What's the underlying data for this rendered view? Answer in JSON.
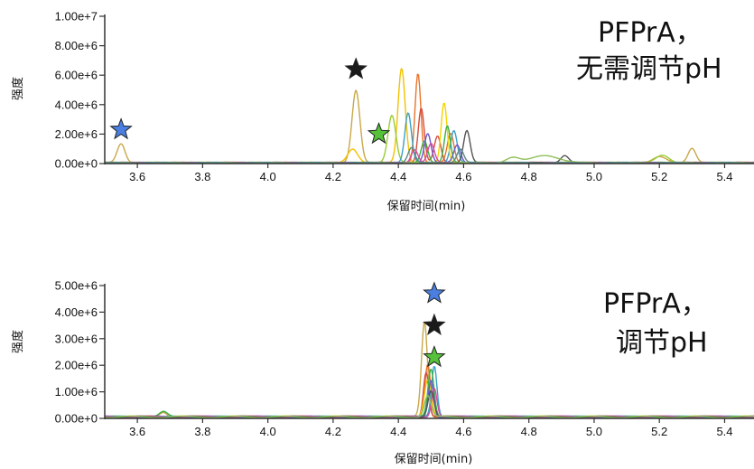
{
  "chart_data": [
    {
      "type": "line",
      "ylabel": "强度",
      "xlabel": "保留时间(min)",
      "annotation_lines": [
        "PFPrA，",
        "无需调节pH"
      ],
      "x_ticks": [
        "3.6",
        "3.8",
        "4.0",
        "4.2",
        "4.4",
        "4.6",
        "4.8",
        "5.0",
        "5.2",
        "5.4"
      ],
      "y_ticks": [
        "0.00e+0",
        "2.00e+6",
        "4.00e+6",
        "6.00e+6",
        "8.00e+6",
        "1.00e+7"
      ],
      "xlim": [
        3.5,
        5.49
      ],
      "ylim": [
        0,
        10000000
      ],
      "grid": false,
      "markers": [
        {
          "symbol": "star",
          "color": "#4a7ee0",
          "x": 3.55,
          "y": 2300000
        },
        {
          "symbol": "star",
          "color": "#1a1a1a",
          "x": 4.27,
          "y": 6400000
        },
        {
          "symbol": "star",
          "color": "#55c23a",
          "x": 4.34,
          "y": 2000000
        }
      ],
      "series": [
        {
          "color": "#c8a84a",
          "peaks": [
            [
              3.55,
              1300000,
              0.012
            ],
            [
              4.27,
              4900000,
              0.012
            ],
            [
              5.2,
              400000,
              0.02
            ],
            [
              5.3,
              1000000,
              0.012
            ]
          ]
        },
        {
          "color": "#f2c200",
          "peaks": [
            [
              4.41,
              6400000,
              0.011
            ],
            [
              4.26,
              900000,
              0.015
            ]
          ]
        },
        {
          "color": "#9acd32",
          "peaks": [
            [
              4.38,
              3200000,
              0.012
            ],
            [
              5.21,
              500000,
              0.02
            ]
          ]
        },
        {
          "color": "#e8742a",
          "peaks": [
            [
              4.46,
              6100000,
              0.009
            ],
            [
              4.56,
              2000000,
              0.01
            ]
          ]
        },
        {
          "color": "#d64c3a",
          "peaks": [
            [
              4.47,
              3700000,
              0.009
            ],
            [
              4.52,
              1800000,
              0.01
            ]
          ]
        },
        {
          "color": "#3aa0c8",
          "peaks": [
            [
              4.43,
              3400000,
              0.01
            ],
            [
              4.57,
              2200000,
              0.01
            ]
          ]
        },
        {
          "color": "#f5d400",
          "peaks": [
            [
              4.54,
              4100000,
              0.009
            ]
          ]
        },
        {
          "color": "#3cb043",
          "peaks": [
            [
              4.55,
              2500000,
              0.009
            ],
            [
              4.48,
              1500000,
              0.01
            ]
          ]
        },
        {
          "color": "#6a5acd",
          "peaks": [
            [
              4.49,
              2000000,
              0.01
            ],
            [
              4.58,
              1200000,
              0.01
            ]
          ]
        },
        {
          "color": "#d64ca0",
          "peaks": [
            [
              4.5,
              1300000,
              0.01
            ],
            [
              4.45,
              900000,
              0.01
            ]
          ]
        },
        {
          "color": "#555555",
          "peaks": [
            [
              4.61,
              2200000,
              0.01
            ],
            [
              4.91,
              500000,
              0.012
            ]
          ]
        },
        {
          "color": "#8fbf5a",
          "peaks": [
            [
              4.85,
              500000,
              0.04
            ],
            [
              4.75,
              350000,
              0.02
            ]
          ]
        },
        {
          "color": "#5a8a8a",
          "peaks": [
            [
              4.44,
              1000000,
              0.01
            ],
            [
              4.59,
              900000,
              0.01
            ]
          ]
        }
      ]
    },
    {
      "type": "line",
      "ylabel": "强度",
      "xlabel": "保留时间(min)",
      "annotation_lines": [
        "PFPrA，",
        "调节pH"
      ],
      "x_ticks": [
        "3.6",
        "3.8",
        "4.0",
        "4.2",
        "4.4",
        "4.6",
        "4.8",
        "5.0",
        "5.2",
        "5.4"
      ],
      "y_ticks": [
        "0.00e+0",
        "1.00e+6",
        "2.00e+6",
        "3.00e+6",
        "4.00e+6",
        "5.00e+6"
      ],
      "xlim": [
        3.5,
        5.49
      ],
      "ylim": [
        0,
        5000000
      ],
      "grid": false,
      "markers": [
        {
          "symbol": "star",
          "color": "#4a7ee0",
          "x": 4.51,
          "y": 4700000
        },
        {
          "symbol": "star",
          "color": "#1a1a1a",
          "x": 4.51,
          "y": 3500000
        },
        {
          "symbol": "star",
          "color": "#55c23a",
          "x": 4.51,
          "y": 2300000
        }
      ],
      "series": [
        {
          "color": "#c8a84a",
          "peaks": [
            [
              4.48,
              3600000,
              0.009
            ],
            [
              3.68,
              150000,
              0.01
            ]
          ]
        },
        {
          "color": "#e8742a",
          "peaks": [
            [
              4.49,
              2000000,
              0.009
            ]
          ]
        },
        {
          "color": "#d64c3a",
          "peaks": [
            [
              4.485,
              1700000,
              0.008
            ]
          ]
        },
        {
          "color": "#f2c200",
          "peaks": [
            [
              4.49,
              1400000,
              0.01
            ]
          ]
        },
        {
          "color": "#3aa0c8",
          "peaks": [
            [
              4.51,
              1900000,
              0.008
            ]
          ]
        },
        {
          "color": "#3cb043",
          "peaks": [
            [
              4.5,
              1800000,
              0.009
            ],
            [
              3.68,
              180000,
              0.012
            ]
          ]
        },
        {
          "color": "#6a5acd",
          "peaks": [
            [
              4.5,
              1400000,
              0.008
            ]
          ]
        },
        {
          "color": "#d64ca0",
          "peaks": [
            [
              4.51,
              1100000,
              0.008
            ]
          ]
        },
        {
          "color": "#555555",
          "peaks": [
            [
              4.5,
              1000000,
              0.009
            ]
          ]
        },
        {
          "color": "#8fbf5a",
          "peaks": [
            [
              4.49,
              800000,
              0.01
            ]
          ]
        }
      ]
    }
  ]
}
